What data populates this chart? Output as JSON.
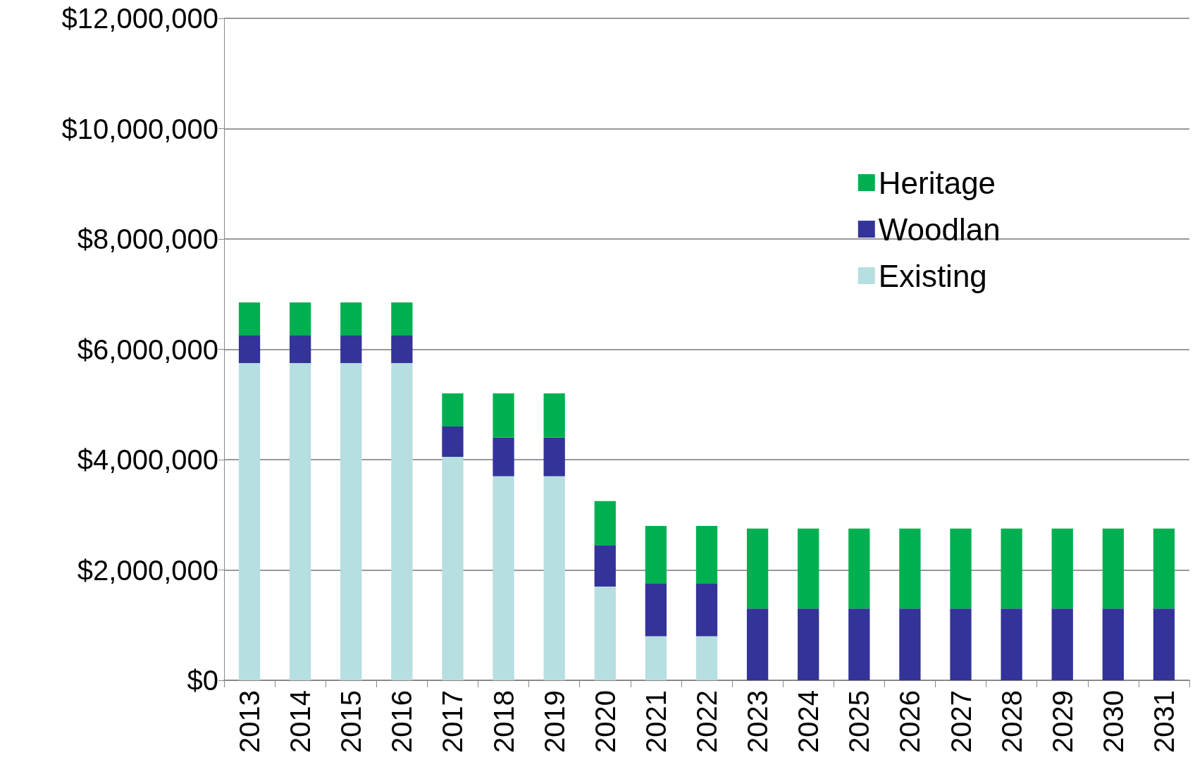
{
  "chart_data": {
    "type": "bar",
    "stacked": true,
    "categories": [
      "2013",
      "2014",
      "2015",
      "2016",
      "2017",
      "2018",
      "2019",
      "2020",
      "2021",
      "2022",
      "2023",
      "2024",
      "2025",
      "2026",
      "2027",
      "2028",
      "2029",
      "2030",
      "2031"
    ],
    "series": [
      {
        "name": "Existing",
        "color": "#b7dee0",
        "values": [
          5750000,
          5750000,
          5750000,
          5750000,
          4050000,
          3700000,
          3700000,
          1700000,
          800000,
          800000,
          0,
          0,
          0,
          0,
          0,
          0,
          0,
          0,
          0
        ]
      },
      {
        "name": "Woodlan",
        "color": "#333399",
        "values": [
          500000,
          500000,
          500000,
          500000,
          550000,
          700000,
          700000,
          750000,
          950000,
          950000,
          1300000,
          1300000,
          1300000,
          1300000,
          1300000,
          1300000,
          1300000,
          1300000,
          1300000
        ]
      },
      {
        "name": "Heritage",
        "color": "#00b050",
        "values": [
          600000,
          600000,
          600000,
          600000,
          600000,
          800000,
          800000,
          800000,
          1050000,
          1050000,
          1450000,
          1450000,
          1450000,
          1450000,
          1450000,
          1450000,
          1450000,
          1450000,
          1450000
        ]
      }
    ],
    "ylim": [
      0,
      12000000
    ],
    "yticks": [
      {
        "value": 0,
        "label": "$0"
      },
      {
        "value": 2000000,
        "label": "$2,000,000"
      },
      {
        "value": 4000000,
        "label": "$4,000,000"
      },
      {
        "value": 6000000,
        "label": "$6,000,000"
      },
      {
        "value": 8000000,
        "label": "$8,000,000"
      },
      {
        "value": 10000000,
        "label": "$10,000,000"
      },
      {
        "value": 12000000,
        "label": "$12,000,000"
      }
    ],
    "grid": "y",
    "legend": "top right"
  }
}
